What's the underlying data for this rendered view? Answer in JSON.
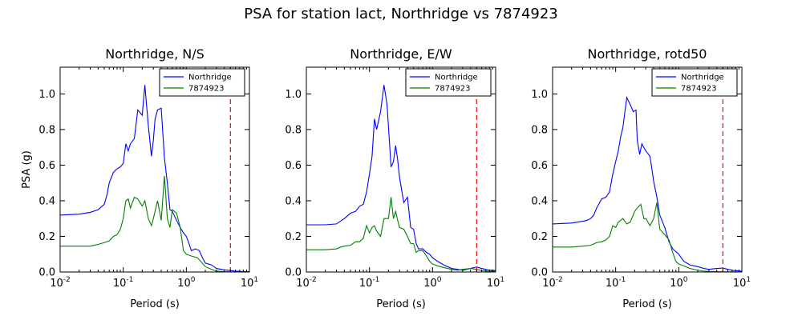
{
  "suptitle": "PSA for station lact, Northridge vs 7874923",
  "colors": {
    "Northridge": "#0000ff",
    "7874923": "#008000",
    "marker": "#ff0000"
  },
  "chart_data": [
    {
      "type": "line",
      "title": "Northridge, N/S",
      "xlabel": "Period (s)",
      "ylabel": "PSA (g)",
      "xscale": "log",
      "xlim": [
        0.01,
        10
      ],
      "ylim": [
        0,
        1.15
      ],
      "xticks": [
        0.01,
        0.1,
        1,
        10
      ],
      "xtick_labels": [
        {
          "base": "10",
          "exp": "-2"
        },
        {
          "base": "10",
          "exp": "-1"
        },
        {
          "base": "10",
          "exp": "0"
        },
        {
          "base": "10",
          "exp": "1"
        }
      ],
      "yticks": [
        "0.0",
        "0.2",
        "0.4",
        "0.6",
        "0.8",
        "1.0"
      ],
      "legend": {
        "placement": "top-right",
        "entries": [
          "Northridge",
          "7874923"
        ]
      },
      "vline": {
        "x": 5,
        "style": "dashed",
        "color": "#ff0000"
      },
      "series": [
        {
          "name": "Northridge",
          "x": [
            0.01,
            0.02,
            0.03,
            0.04,
            0.05,
            0.055,
            0.06,
            0.07,
            0.08,
            0.09,
            0.1,
            0.11,
            0.12,
            0.13,
            0.15,
            0.17,
            0.2,
            0.22,
            0.25,
            0.28,
            0.3,
            0.32,
            0.35,
            0.4,
            0.45,
            0.5,
            0.55,
            0.6,
            0.7,
            0.8,
            0.9,
            1.0,
            1.1,
            1.2,
            1.4,
            1.6,
            1.8,
            2.0,
            2.5,
            3,
            4,
            5,
            6,
            7.5,
            10
          ],
          "y": [
            0.32,
            0.325,
            0.335,
            0.35,
            0.38,
            0.43,
            0.5,
            0.56,
            0.58,
            0.59,
            0.61,
            0.72,
            0.68,
            0.72,
            0.75,
            0.91,
            0.88,
            1.05,
            0.82,
            0.65,
            0.74,
            0.86,
            0.91,
            0.92,
            0.64,
            0.5,
            0.35,
            0.34,
            0.29,
            0.25,
            0.22,
            0.2,
            0.16,
            0.12,
            0.13,
            0.12,
            0.08,
            0.05,
            0.04,
            0.02,
            0.012,
            0.008,
            0.005,
            0.003,
            0.002
          ]
        },
        {
          "name": "7874923",
          "x": [
            0.01,
            0.02,
            0.03,
            0.04,
            0.05,
            0.06,
            0.07,
            0.08,
            0.09,
            0.1,
            0.11,
            0.12,
            0.13,
            0.15,
            0.17,
            0.2,
            0.22,
            0.25,
            0.28,
            0.3,
            0.35,
            0.4,
            0.45,
            0.5,
            0.55,
            0.6,
            0.65,
            0.7,
            0.8,
            0.9,
            1.0,
            1.1,
            1.2,
            1.5,
            2.0,
            2.5,
            3,
            4,
            5,
            6,
            7.5,
            10
          ],
          "y": [
            0.145,
            0.145,
            0.145,
            0.155,
            0.165,
            0.175,
            0.2,
            0.21,
            0.24,
            0.3,
            0.4,
            0.41,
            0.36,
            0.42,
            0.41,
            0.37,
            0.4,
            0.3,
            0.26,
            0.3,
            0.4,
            0.29,
            0.54,
            0.3,
            0.25,
            0.35,
            0.34,
            0.33,
            0.25,
            0.12,
            0.1,
            0.095,
            0.09,
            0.08,
            0.03,
            0.015,
            0.005,
            0.002,
            0.001,
            0.001,
            0.001,
            0.001
          ]
        }
      ]
    },
    {
      "type": "line",
      "title": "Northridge, E/W",
      "xlabel": "Period (s)",
      "ylabel": "",
      "xscale": "log",
      "xlim": [
        0.01,
        10
      ],
      "ylim": [
        0,
        1.15
      ],
      "xticks": [
        0.01,
        0.1,
        1,
        10
      ],
      "xtick_labels": [
        {
          "base": "10",
          "exp": "-2"
        },
        {
          "base": "10",
          "exp": "-1"
        },
        {
          "base": "10",
          "exp": "0"
        },
        {
          "base": "10",
          "exp": "1"
        }
      ],
      "yticks": [
        "0.0",
        "0.2",
        "0.4",
        "0.6",
        "0.8",
        "1.0"
      ],
      "legend": {
        "placement": "top-right",
        "entries": [
          "Northridge",
          "7874923"
        ]
      },
      "vline": {
        "x": 5,
        "style": "dashed",
        "color": "#ff0000"
      },
      "series": [
        {
          "name": "Northridge",
          "x": [
            0.01,
            0.02,
            0.03,
            0.04,
            0.05,
            0.06,
            0.07,
            0.08,
            0.09,
            0.1,
            0.11,
            0.12,
            0.13,
            0.15,
            0.17,
            0.19,
            0.22,
            0.24,
            0.26,
            0.28,
            0.3,
            0.35,
            0.4,
            0.45,
            0.5,
            0.55,
            0.6,
            0.7,
            0.8,
            0.9,
            1.0,
            1.2,
            1.5,
            2.0,
            2.5,
            3,
            4,
            5,
            6,
            7.5,
            10
          ],
          "y": [
            0.265,
            0.265,
            0.27,
            0.3,
            0.33,
            0.34,
            0.37,
            0.38,
            0.45,
            0.55,
            0.65,
            0.86,
            0.8,
            0.9,
            1.05,
            0.94,
            0.59,
            0.62,
            0.71,
            0.63,
            0.53,
            0.39,
            0.42,
            0.25,
            0.24,
            0.16,
            0.13,
            0.13,
            0.11,
            0.1,
            0.08,
            0.06,
            0.04,
            0.02,
            0.015,
            0.01,
            0.02,
            0.028,
            0.02,
            0.012,
            0.008
          ]
        },
        {
          "name": "7874923",
          "x": [
            0.01,
            0.02,
            0.03,
            0.035,
            0.04,
            0.05,
            0.06,
            0.07,
            0.08,
            0.09,
            0.1,
            0.11,
            0.12,
            0.13,
            0.15,
            0.17,
            0.2,
            0.22,
            0.24,
            0.26,
            0.28,
            0.3,
            0.35,
            0.4,
            0.45,
            0.5,
            0.55,
            0.6,
            0.7,
            0.8,
            0.9,
            1.0,
            1.2,
            1.5,
            2.0,
            2.5,
            3,
            4,
            5,
            6,
            7.5,
            10
          ],
          "y": [
            0.125,
            0.125,
            0.13,
            0.14,
            0.145,
            0.15,
            0.17,
            0.17,
            0.19,
            0.26,
            0.22,
            0.25,
            0.26,
            0.23,
            0.2,
            0.3,
            0.3,
            0.42,
            0.3,
            0.34,
            0.29,
            0.25,
            0.24,
            0.2,
            0.16,
            0.16,
            0.11,
            0.12,
            0.12,
            0.09,
            0.06,
            0.045,
            0.035,
            0.025,
            0.015,
            0.01,
            0.015,
            0.02,
            0.015,
            0.008,
            0.005,
            0.004
          ]
        }
      ]
    },
    {
      "type": "line",
      "title": "Northridge, rotd50",
      "xlabel": "Period (s)",
      "ylabel": "",
      "xscale": "log",
      "xlim": [
        0.01,
        10
      ],
      "ylim": [
        0,
        1.15
      ],
      "xticks": [
        0.01,
        0.1,
        1,
        10
      ],
      "xtick_labels": [
        {
          "base": "10",
          "exp": "-2"
        },
        {
          "base": "10",
          "exp": "-1"
        },
        {
          "base": "10",
          "exp": "0"
        },
        {
          "base": "10",
          "exp": "1"
        }
      ],
      "yticks": [
        "0.0",
        "0.2",
        "0.4",
        "0.6",
        "0.8",
        "1.0"
      ],
      "legend": {
        "placement": "top-right",
        "entries": [
          "Northridge",
          "7874923"
        ]
      },
      "vline": {
        "x": 5,
        "style": "dashed",
        "color": "#ff0000"
      },
      "series": [
        {
          "name": "Northridge",
          "x": [
            0.01,
            0.02,
            0.03,
            0.035,
            0.04,
            0.045,
            0.05,
            0.06,
            0.07,
            0.08,
            0.09,
            0.1,
            0.11,
            0.12,
            0.13,
            0.15,
            0.17,
            0.19,
            0.21,
            0.22,
            0.24,
            0.26,
            0.3,
            0.35,
            0.4,
            0.45,
            0.5,
            0.6,
            0.7,
            0.8,
            1.0,
            1.2,
            1.5,
            2.0,
            2.5,
            3,
            4,
            5,
            6,
            7.5,
            10
          ],
          "y": [
            0.27,
            0.275,
            0.285,
            0.29,
            0.3,
            0.32,
            0.36,
            0.41,
            0.42,
            0.45,
            0.55,
            0.62,
            0.68,
            0.76,
            0.81,
            0.98,
            0.94,
            0.9,
            0.91,
            0.74,
            0.66,
            0.72,
            0.68,
            0.65,
            0.51,
            0.42,
            0.32,
            0.25,
            0.17,
            0.13,
            0.1,
            0.06,
            0.04,
            0.03,
            0.02,
            0.015,
            0.02,
            0.022,
            0.015,
            0.008,
            0.005
          ]
        },
        {
          "name": "7874923",
          "x": [
            0.01,
            0.02,
            0.03,
            0.04,
            0.05,
            0.06,
            0.07,
            0.08,
            0.09,
            0.1,
            0.11,
            0.12,
            0.13,
            0.15,
            0.17,
            0.2,
            0.22,
            0.25,
            0.28,
            0.3,
            0.35,
            0.4,
            0.45,
            0.5,
            0.6,
            0.7,
            0.8,
            0.9,
            1.0,
            1.2,
            1.5,
            2.0,
            2.5,
            3,
            4,
            5,
            6,
            7.5,
            10
          ],
          "y": [
            0.14,
            0.14,
            0.145,
            0.15,
            0.165,
            0.17,
            0.18,
            0.2,
            0.26,
            0.25,
            0.28,
            0.29,
            0.3,
            0.27,
            0.28,
            0.34,
            0.36,
            0.38,
            0.3,
            0.3,
            0.26,
            0.3,
            0.39,
            0.24,
            0.21,
            0.18,
            0.11,
            0.06,
            0.045,
            0.035,
            0.02,
            0.01,
            0.005,
            0.003,
            0.002,
            0.001,
            0.001,
            0.001,
            0.001
          ]
        }
      ]
    }
  ]
}
